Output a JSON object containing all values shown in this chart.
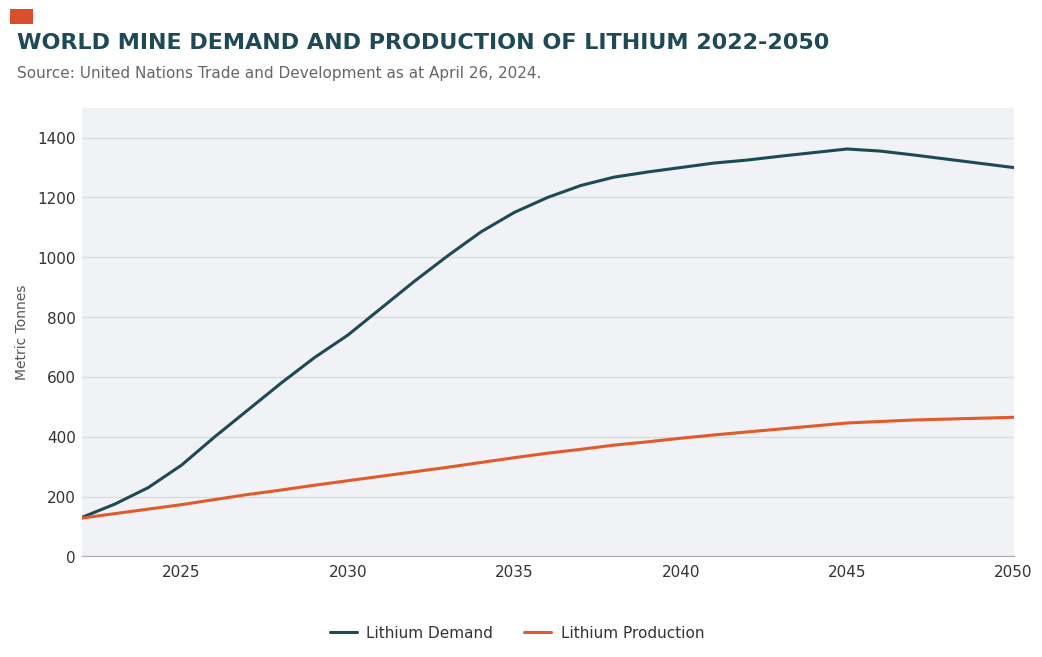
{
  "title": "WORLD MINE DEMAND AND PRODUCTION OF LITHIUM 2022-2050",
  "subtitle": "Source: United Nations Trade and Development as at April 26, 2024.",
  "title_color": "#1d4a56",
  "subtitle_color": "#666666",
  "title_fontsize": 16,
  "subtitle_fontsize": 11,
  "ylabel": "Metric Tonnes",
  "ylabel_fontsize": 10,
  "background_color": "#ffffff",
  "plot_bg_color": "#f0f2f5",
  "grid_color": "#d8dce0",
  "accent_rect_color": "#d94f2b",
  "demand_color": "#1d4a56",
  "production_color": "#e05a2b",
  "demand_label": "Lithium Demand",
  "production_label": "Lithium Production",
  "years_demand": [
    2022,
    2023,
    2024,
    2025,
    2026,
    2027,
    2028,
    2029,
    2030,
    2031,
    2032,
    2033,
    2034,
    2035,
    2036,
    2037,
    2038,
    2039,
    2040,
    2041,
    2042,
    2043,
    2044,
    2045,
    2046,
    2047,
    2048,
    2049,
    2050
  ],
  "demand_values": [
    130,
    175,
    230,
    305,
    400,
    490,
    580,
    665,
    740,
    830,
    920,
    1005,
    1085,
    1150,
    1200,
    1240,
    1268,
    1285,
    1300,
    1315,
    1325,
    1338,
    1350,
    1362,
    1355,
    1342,
    1328,
    1314,
    1300
  ],
  "years_production": [
    2022,
    2023,
    2024,
    2025,
    2026,
    2027,
    2028,
    2029,
    2030,
    2031,
    2032,
    2033,
    2034,
    2035,
    2036,
    2037,
    2038,
    2039,
    2040,
    2041,
    2042,
    2043,
    2044,
    2045,
    2046,
    2047,
    2048,
    2049,
    2050
  ],
  "production_values": [
    128,
    143,
    158,
    173,
    190,
    207,
    222,
    238,
    253,
    268,
    283,
    298,
    314,
    330,
    345,
    358,
    372,
    383,
    395,
    406,
    416,
    426,
    436,
    446,
    451,
    456,
    459,
    462,
    465
  ],
  "ylim": [
    0,
    1500
  ],
  "yticks": [
    0,
    200,
    400,
    600,
    800,
    1000,
    1200,
    1400
  ],
  "xticks": [
    2025,
    2030,
    2035,
    2040,
    2045,
    2050
  ],
  "xlim": [
    2022,
    2050
  ],
  "legend_fontsize": 11,
  "line_width": 2.2
}
